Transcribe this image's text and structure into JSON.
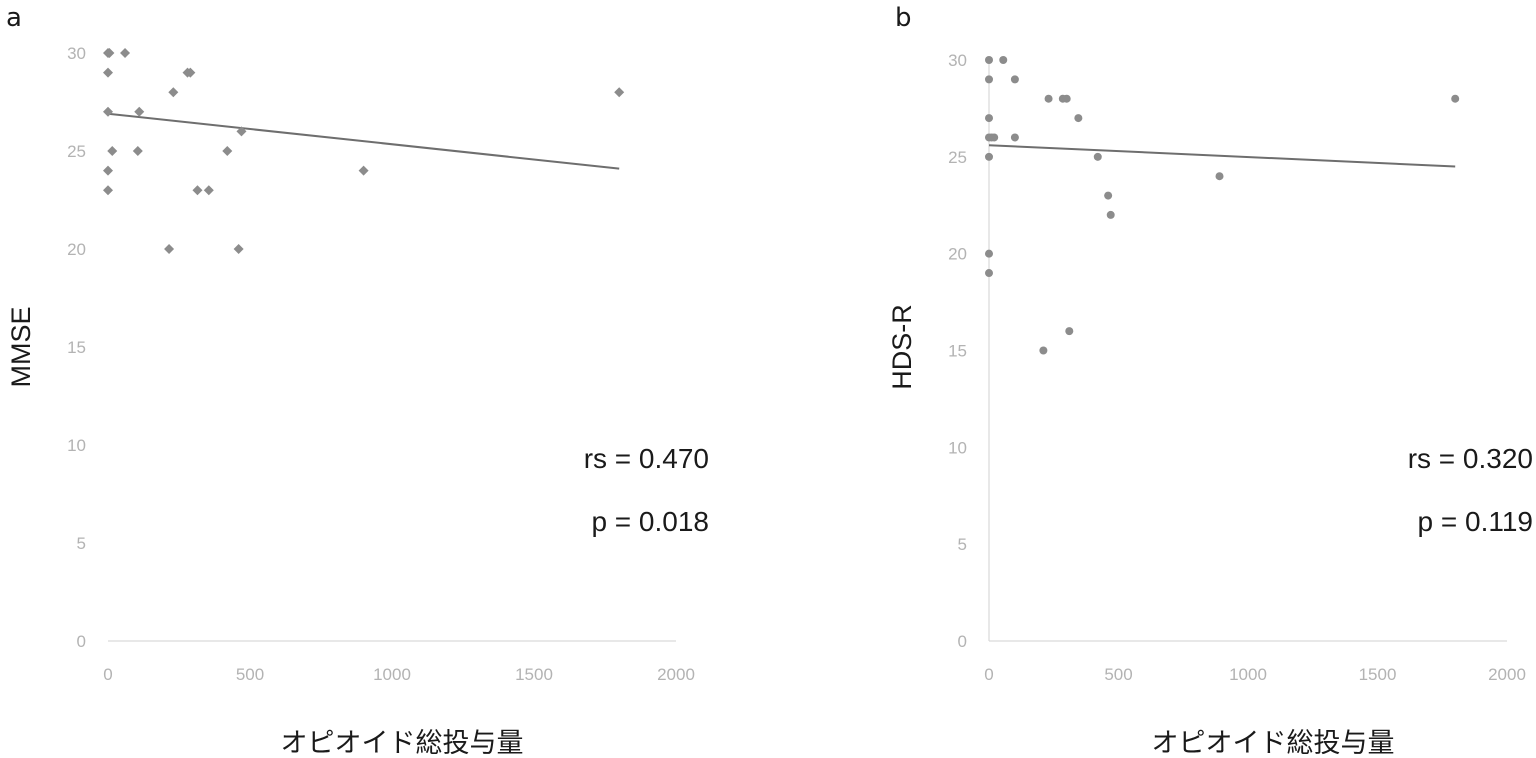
{
  "chart_data": [
    {
      "panel": "a",
      "type": "scatter",
      "xlabel": "オピオイド総投与量",
      "ylabel": "MMSE",
      "xlim": [
        0,
        2000
      ],
      "ylim": [
        0,
        30
      ],
      "xticks": [
        "0",
        "500",
        "1000",
        "1500",
        "2000"
      ],
      "yticks": [
        "0",
        "5",
        "10",
        "15",
        "20",
        "25",
        "30"
      ],
      "marker": "diamond",
      "color": "#8c8c8c",
      "points": [
        [
          0,
          30
        ],
        [
          5,
          30
        ],
        [
          60,
          30
        ],
        [
          0,
          29
        ],
        [
          280,
          29
        ],
        [
          290,
          29
        ],
        [
          0,
          27
        ],
        [
          110,
          27
        ],
        [
          230,
          28
        ],
        [
          470,
          26
        ],
        [
          1800,
          28
        ],
        [
          15,
          25
        ],
        [
          105,
          25
        ],
        [
          420,
          25
        ],
        [
          0,
          24
        ],
        [
          900,
          24
        ],
        [
          0,
          23
        ],
        [
          315,
          23
        ],
        [
          355,
          23
        ],
        [
          215,
          20
        ],
        [
          460,
          20
        ]
      ],
      "trendline": {
        "x": [
          0,
          1800
        ],
        "y": [
          26.9,
          24.1
        ]
      },
      "stats": {
        "rs": "rs = 0.470",
        "p": "p = 0.018"
      }
    },
    {
      "panel": "b",
      "type": "scatter",
      "xlabel": "オピオイド総投与量",
      "ylabel": "HDS-R",
      "xlim": [
        0,
        2000
      ],
      "ylim": [
        0,
        30
      ],
      "xticks": [
        "0",
        "500",
        "1000",
        "1500",
        "2000"
      ],
      "yticks": [
        "0",
        "5",
        "10",
        "15",
        "20",
        "25",
        "30"
      ],
      "marker": "circle",
      "color": "#8c8c8c",
      "points": [
        [
          0,
          30
        ],
        [
          55,
          30
        ],
        [
          0,
          29
        ],
        [
          100,
          29
        ],
        [
          230,
          28
        ],
        [
          285,
          28
        ],
        [
          300,
          28
        ],
        [
          1800,
          28
        ],
        [
          0,
          27
        ],
        [
          345,
          27
        ],
        [
          0,
          26
        ],
        [
          10,
          26
        ],
        [
          20,
          26
        ],
        [
          100,
          26
        ],
        [
          0,
          25
        ],
        [
          420,
          25
        ],
        [
          890,
          24
        ],
        [
          460,
          23
        ],
        [
          470,
          22
        ],
        [
          0,
          20
        ],
        [
          0,
          19
        ],
        [
          310,
          16
        ],
        [
          210,
          15
        ]
      ],
      "trendline": {
        "x": [
          0,
          1800
        ],
        "y": [
          25.6,
          24.5
        ]
      },
      "stats": {
        "rs": "rs = 0.320",
        "p": "p = 0.119"
      }
    }
  ]
}
